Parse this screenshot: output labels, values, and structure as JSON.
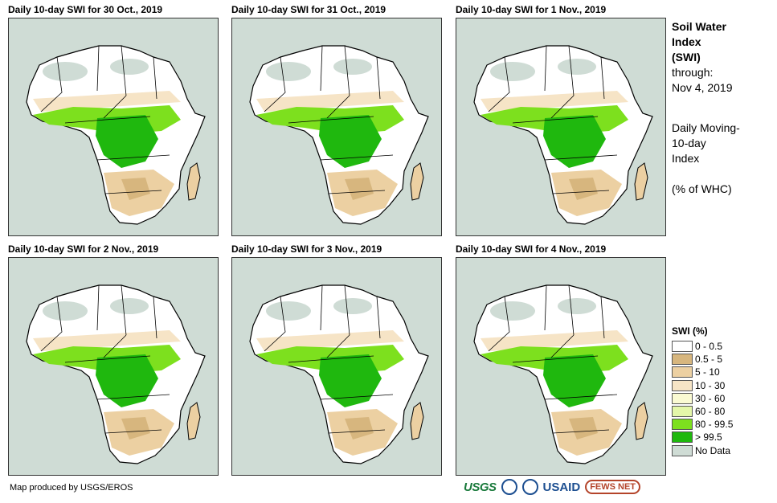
{
  "panels": [
    {
      "title": "Daily 10-day SWI for 30 Oct., 2019"
    },
    {
      "title": "Daily 10-day SWI for 31 Oct., 2019"
    },
    {
      "title": "Daily 10-day SWI for 1 Nov., 2019"
    },
    {
      "title": "Daily 10-day SWI for 2 Nov., 2019"
    },
    {
      "title": "Daily 10-day SWI for 3 Nov., 2019"
    },
    {
      "title": "Daily 10-day SWI for 4 Nov., 2019"
    }
  ],
  "side": {
    "heading_1": "Soil Water",
    "heading_2": "Index",
    "heading_3": "(SWI)",
    "through_label": "through:",
    "through_date": "Nov 4, 2019",
    "desc_1": "Daily Moving-",
    "desc_2": "10-day",
    "desc_3": "Index",
    "units": "(% of WHC)"
  },
  "legend": {
    "title": "SWI (%)",
    "items": [
      {
        "label": "0 - 0.5",
        "color": "#ffffff"
      },
      {
        "label": "0.5 - 5",
        "color": "#d7b67e"
      },
      {
        "label": "5 - 10",
        "color": "#ecd0a2"
      },
      {
        "label": "10 - 30",
        "color": "#f6e4c6"
      },
      {
        "label": "30 - 60",
        "color": "#fafad2"
      },
      {
        "label": "60 - 80",
        "color": "#e4f7a9"
      },
      {
        "label": "80 - 99.5",
        "color": "#7de01e"
      },
      {
        "label": "> 99.5",
        "color": "#1fb80e"
      },
      {
        "label": "No Data",
        "color": "#cfdcd5"
      }
    ]
  },
  "credit": "Map produced by USGS/EROS",
  "logos": {
    "usgs": "USGS",
    "usaid": "USAID",
    "fews": "FEWS NET"
  }
}
